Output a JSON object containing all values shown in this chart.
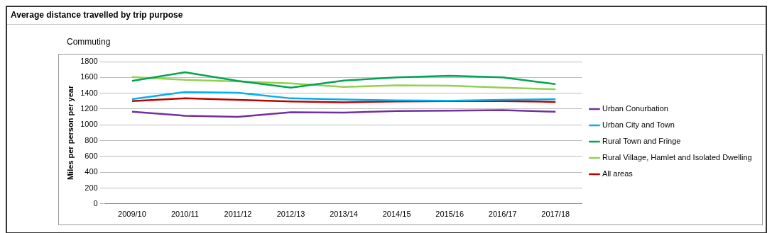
{
  "chart_data": {
    "type": "line",
    "title": "Average distance travelled by trip purpose",
    "subtitle": "Commuting",
    "ylabel": "Miles per person per year",
    "categories": [
      "2009/10",
      "2010/11",
      "2011/12",
      "2012/13",
      "2013/14",
      "2014/15",
      "2015/16",
      "2016/17",
      "2017/18"
    ],
    "series": [
      {
        "name": "Urban Conurbation",
        "color": "#7030a0",
        "values": [
          1165,
          1115,
          1100,
          1160,
          1155,
          1175,
          1180,
          1185,
          1165
        ]
      },
      {
        "name": "Urban City and Town",
        "color": "#00b0f0",
        "values": [
          1325,
          1415,
          1405,
          1335,
          1320,
          1310,
          1305,
          1315,
          1325
        ]
      },
      {
        "name": "Rural Town and Fringe",
        "color": "#00a550",
        "values": [
          1555,
          1665,
          1555,
          1470,
          1560,
          1600,
          1620,
          1600,
          1515
        ]
      },
      {
        "name": "Rural Village, Hamlet and Isolated Dwelling",
        "color": "#92d050",
        "values": [
          1605,
          1570,
          1550,
          1525,
          1480,
          1500,
          1495,
          1470,
          1450
        ]
      },
      {
        "name": "All areas",
        "color": "#c00000",
        "values": [
          1300,
          1335,
          1315,
          1295,
          1285,
          1295,
          1300,
          1300,
          1290
        ]
      }
    ],
    "ylim": [
      0,
      1800
    ],
    "yticks": [
      0,
      200,
      400,
      600,
      800,
      1000,
      1200,
      1400,
      1600,
      1800
    ],
    "grid": "y",
    "legend": "right",
    "marker": "none",
    "line_style": "solid"
  }
}
